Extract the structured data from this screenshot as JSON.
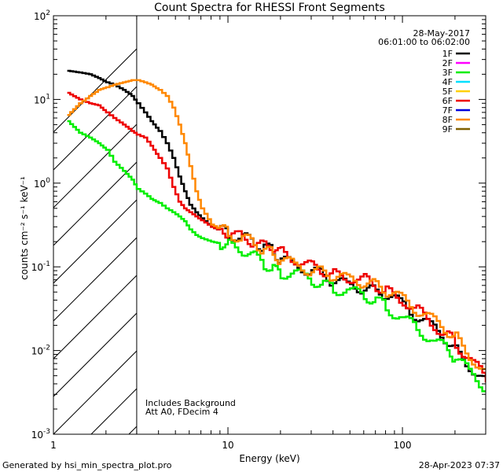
{
  "chart_data": {
    "type": "line",
    "title": "Count Spectra for RHESSI Front Segments",
    "xlabel": "Energy (keV)",
    "ylabel": "counts cm⁻² s⁻¹ keV⁻¹",
    "xscale": "log",
    "yscale": "log",
    "xlim": [
      1,
      300
    ],
    "ylim": [
      0.001,
      100
    ],
    "x_ticks": [
      {
        "v": 10,
        "label": "10"
      },
      {
        "v": 100,
        "label": "100"
      }
    ],
    "y_ticks": [
      {
        "v": 0.001,
        "m": "10",
        "e": "-3"
      },
      {
        "v": 0.01,
        "m": "10",
        "e": "-2"
      },
      {
        "v": 0.1,
        "m": "10",
        "e": "-1"
      },
      {
        "v": 1,
        "m": "10",
        "e": "0"
      },
      {
        "v": 10,
        "m": "10",
        "e": "1"
      },
      {
        "v": 100,
        "m": "10",
        "e": "2"
      }
    ],
    "date": "28-May-2017",
    "time_range": "06:01:00 to 06:02:00",
    "attenuator_cutoff_keV": 3,
    "annotations": [
      "Includes Background",
      "Att A0, FDecim 4"
    ],
    "legend": [
      {
        "name": "1F",
        "color": "#000000"
      },
      {
        "name": "2F",
        "color": "#ff00ff"
      },
      {
        "name": "3F",
        "color": "#00ee00"
      },
      {
        "name": "4F",
        "color": "#00e0ff"
      },
      {
        "name": "5F",
        "color": "#ffd000"
      },
      {
        "name": "6F",
        "color": "#ee0000"
      },
      {
        "name": "7F",
        "color": "#0000dd"
      },
      {
        "name": "8F",
        "color": "#ff8800"
      },
      {
        "name": "9F",
        "color": "#806000"
      }
    ],
    "series": [
      {
        "name": "1F",
        "color": "#000000",
        "x": [
          1.2,
          1.4,
          1.6,
          1.8,
          2.0,
          2.2,
          2.5,
          2.8,
          3.0,
          3.3,
          3.6,
          4.0,
          4.4,
          4.8,
          5.2,
          5.6,
          6.0,
          6.5,
          7,
          8,
          9,
          10,
          12,
          14,
          16,
          18,
          20,
          25,
          30,
          35,
          40,
          50,
          60,
          70,
          80,
          100,
          120,
          150,
          180,
          200,
          250,
          300
        ],
        "y": [
          22,
          21,
          20,
          18,
          16,
          15,
          13,
          11,
          9,
          7,
          5.5,
          4.2,
          3,
          2,
          1.2,
          0.8,
          0.55,
          0.45,
          0.38,
          0.3,
          0.27,
          0.25,
          0.22,
          0.2,
          0.17,
          0.15,
          0.12,
          0.1,
          0.09,
          0.08,
          0.065,
          0.06,
          0.055,
          0.05,
          0.045,
          0.035,
          0.025,
          0.018,
          0.013,
          0.01,
          0.006,
          0.004
        ]
      },
      {
        "name": "3F",
        "color": "#00ee00",
        "x": [
          1.2,
          1.4,
          1.6,
          1.8,
          2.0,
          2.2,
          2.5,
          2.8,
          3.0,
          3.3,
          3.6,
          4.0,
          4.4,
          4.8,
          5.2,
          5.6,
          6.0,
          6.5,
          7,
          8,
          9,
          10,
          12,
          14,
          16,
          18,
          20,
          25,
          30,
          35,
          40,
          50,
          60,
          70,
          80,
          100,
          120,
          150,
          180,
          200,
          250,
          300
        ],
        "y": [
          5.5,
          4.0,
          3.5,
          3.0,
          2.5,
          1.8,
          1.4,
          1.1,
          0.85,
          0.75,
          0.65,
          0.58,
          0.5,
          0.45,
          0.4,
          0.35,
          0.28,
          0.24,
          0.22,
          0.2,
          0.19,
          0.18,
          0.16,
          0.13,
          0.11,
          0.09,
          0.085,
          0.08,
          0.07,
          0.06,
          0.055,
          0.05,
          0.045,
          0.04,
          0.032,
          0.024,
          0.018,
          0.013,
          0.01,
          0.008,
          0.005,
          0.0035
        ]
      },
      {
        "name": "6F",
        "color": "#ee0000",
        "x": [
          1.2,
          1.4,
          1.6,
          1.8,
          2.0,
          2.2,
          2.5,
          2.8,
          3.0,
          3.3,
          3.6,
          4.0,
          4.4,
          4.8,
          5.2,
          5.6,
          6.0,
          6.5,
          7,
          8,
          9,
          10,
          12,
          14,
          16,
          18,
          20,
          25,
          30,
          35,
          40,
          50,
          60,
          70,
          80,
          100,
          120,
          150,
          180,
          200,
          250,
          300
        ],
        "y": [
          12,
          10,
          9,
          8.5,
          7,
          6,
          5,
          4.2,
          3.8,
          3.5,
          2.8,
          2.0,
          1.5,
          0.9,
          0.6,
          0.5,
          0.45,
          0.4,
          0.36,
          0.3,
          0.27,
          0.25,
          0.22,
          0.2,
          0.18,
          0.17,
          0.15,
          0.12,
          0.1,
          0.09,
          0.08,
          0.075,
          0.07,
          0.06,
          0.05,
          0.04,
          0.03,
          0.02,
          0.015,
          0.012,
          0.007,
          0.0045
        ]
      },
      {
        "name": "8F",
        "color": "#ff8800",
        "x": [
          1.2,
          1.4,
          1.6,
          1.8,
          2.0,
          2.2,
          2.5,
          2.8,
          3.0,
          3.3,
          3.6,
          4.0,
          4.4,
          4.8,
          5.2,
          5.6,
          6.0,
          6.5,
          7,
          8,
          9,
          10,
          12,
          14,
          16,
          18,
          20,
          25,
          30,
          35,
          40,
          50,
          60,
          70,
          80,
          100,
          120,
          150,
          180,
          200,
          250,
          300
        ],
        "y": [
          6.5,
          9,
          11,
          13,
          14,
          15,
          16,
          17,
          17,
          16,
          15,
          13,
          11,
          8,
          5,
          3,
          1.6,
          0.8,
          0.5,
          0.32,
          0.28,
          0.25,
          0.22,
          0.19,
          0.16,
          0.14,
          0.12,
          0.1,
          0.09,
          0.085,
          0.075,
          0.07,
          0.065,
          0.06,
          0.05,
          0.04,
          0.03,
          0.022,
          0.017,
          0.014,
          0.008,
          0.005
        ]
      }
    ]
  },
  "footer": {
    "generated_by": "Generated by hsi_min_spectra_plot.pro",
    "timestamp": "28-Apr-2023 07:37"
  }
}
